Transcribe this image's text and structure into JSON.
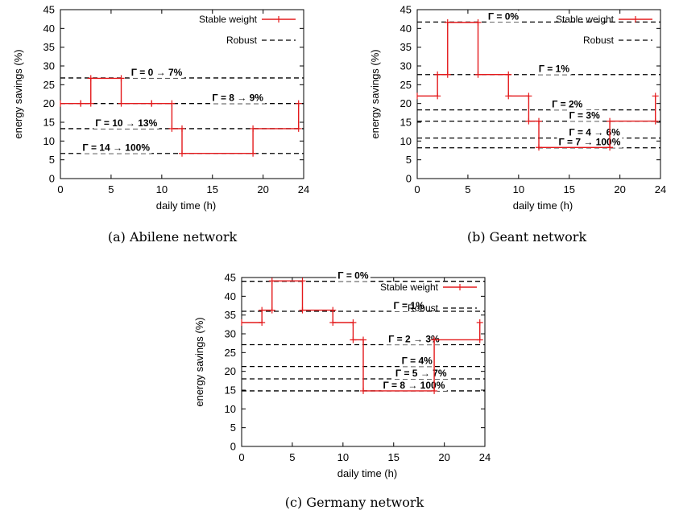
{
  "colors": {
    "stable": "#e41a1c",
    "robust": "#000000",
    "axis": "#000000"
  },
  "chart_data": [
    {
      "type": "line",
      "caption": "(a) Abilene network",
      "xlabel": "daily time (h)",
      "ylabel": "energy savings (%)",
      "xlim": [
        0,
        24
      ],
      "ylim": [
        0,
        45
      ],
      "xticks": [
        "0",
        "5",
        "10",
        "15",
        "20",
        "24"
      ],
      "yticks": [
        "0",
        "5",
        "10",
        "15",
        "20",
        "25",
        "30",
        "35",
        "40",
        "45"
      ],
      "legend": {
        "placement": "top-right",
        "stable": "Stable weight",
        "robust": "Robust"
      },
      "series": [
        {
          "name": "Stable weight",
          "x": [
            0,
            2,
            3,
            6,
            9,
            11,
            12,
            19,
            23.5
          ],
          "y": [
            20,
            20,
            26.7,
            20,
            20,
            13.3,
            6.7,
            13.3,
            20
          ]
        }
      ],
      "robust_levels": [
        {
          "y": 26.8,
          "label": "Γ = 0 → 7%",
          "label_x": 9.5
        },
        {
          "y": 20,
          "label": "Γ = 8 → 9%",
          "label_x": 17.5
        },
        {
          "y": 13.3,
          "label": "Γ = 10 → 13%",
          "label_x": 6.5
        },
        {
          "y": 6.7,
          "label": "Γ = 14 → 100%",
          "label_x": 5.5
        }
      ]
    },
    {
      "type": "line",
      "caption": "(b) Geant network",
      "xlabel": "daily time (h)",
      "ylabel": "energy savings (%)",
      "xlim": [
        0,
        24
      ],
      "ylim": [
        0,
        45
      ],
      "xticks": [
        "0",
        "5",
        "10",
        "15",
        "20",
        "24"
      ],
      "yticks": [
        "0",
        "5",
        "10",
        "15",
        "20",
        "25",
        "30",
        "35",
        "40",
        "45"
      ],
      "legend": {
        "placement": "top-right",
        "stable": "Stable weight",
        "robust": "Robust"
      },
      "series": [
        {
          "name": "Stable weight",
          "x": [
            0,
            2,
            3,
            6,
            9,
            11,
            12,
            19,
            23.5
          ],
          "y": [
            22,
            27.7,
            41.6,
            27.7,
            22,
            15.3,
            8.3,
            15.3,
            22
          ]
        }
      ],
      "robust_levels": [
        {
          "y": 41.7,
          "label": "Γ = 0%",
          "label_x": 8.5
        },
        {
          "y": 27.7,
          "label": "Γ = 1%",
          "label_x": 13.5
        },
        {
          "y": 18.3,
          "label": "Γ = 2%",
          "label_x": 14.8
        },
        {
          "y": 15.3,
          "label": "Γ = 3%",
          "label_x": 16.5
        },
        {
          "y": 10.8,
          "label": "Γ = 4 → 6%",
          "label_x": 17.5
        },
        {
          "y": 8.2,
          "label": "Γ = 7 → 100%",
          "label_x": 17
        }
      ]
    },
    {
      "type": "line",
      "caption": "(c) Germany network",
      "xlabel": "daily time (h)",
      "ylabel": "energy savings (%)",
      "xlim": [
        0,
        24
      ],
      "ylim": [
        0,
        45
      ],
      "xticks": [
        "0",
        "5",
        "10",
        "15",
        "20",
        "24"
      ],
      "yticks": [
        "0",
        "5",
        "10",
        "15",
        "20",
        "25",
        "30",
        "35",
        "40",
        "45"
      ],
      "legend": {
        "placement": "top-right",
        "stable": "Stable weight",
        "robust": "Robust"
      },
      "series": [
        {
          "name": "Stable weight",
          "x": [
            0,
            2,
            3,
            6,
            9,
            11,
            12,
            19,
            23.5
          ],
          "y": [
            33,
            36.3,
            44.1,
            36.3,
            33,
            28.4,
            14.8,
            28.4,
            33
          ]
        }
      ],
      "robust_levels": [
        {
          "y": 44,
          "label": "Γ = 0%",
          "label_x": 11
        },
        {
          "y": 36,
          "label": "Γ = 1%",
          "label_x": 16.5
        },
        {
          "y": 27.1,
          "label": "Γ = 2 → 3%",
          "label_x": 17
        },
        {
          "y": 21.3,
          "label": "Γ = 4%",
          "label_x": 17.3
        },
        {
          "y": 18,
          "label": "Γ = 5 → 7%",
          "label_x": 17.7
        },
        {
          "y": 14.8,
          "label": "Γ = 8 → 100%",
          "label_x": 17
        }
      ]
    }
  ]
}
